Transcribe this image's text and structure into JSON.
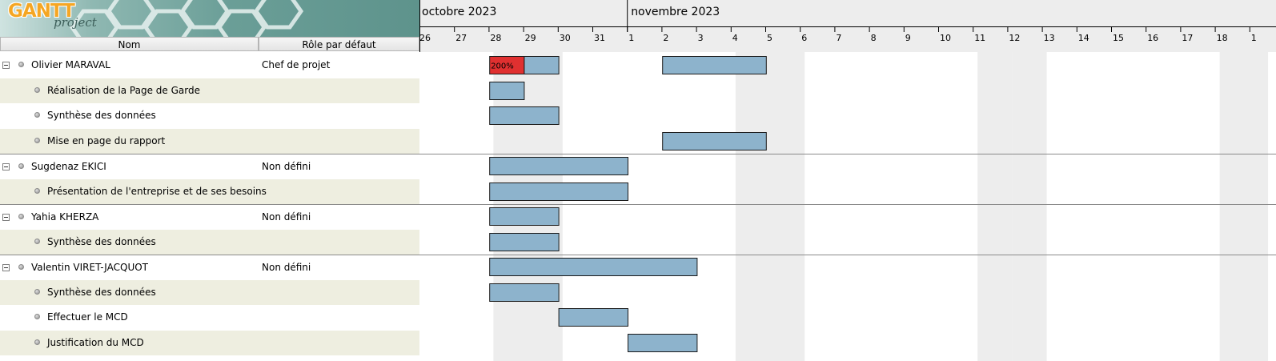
{
  "logo": {
    "gantt": "GANTT",
    "project": "project"
  },
  "table_headers": {
    "name": "Nom",
    "role": "Rôle par défaut"
  },
  "rows": [
    {
      "type": "resource",
      "name": "Olivier MARAVAL",
      "role": "Chef de projet"
    },
    {
      "type": "task",
      "name": "Réalisation de la Page de Garde"
    },
    {
      "type": "task",
      "name": "Synthèse des données"
    },
    {
      "type": "task",
      "name": "Mise en page du rapport"
    },
    {
      "type": "resource",
      "name": "Sugdenaz EKICI",
      "role": "Non défini"
    },
    {
      "type": "task",
      "name": "Présentation de l'entreprise et de ses besoins"
    },
    {
      "type": "resource",
      "name": "Yahia KHERZA",
      "role": "Non défini"
    },
    {
      "type": "task",
      "name": "Synthèse des données"
    },
    {
      "type": "resource",
      "name": "Valentin VIRET-JACQUOT",
      "role": "Non défini"
    },
    {
      "type": "task",
      "name": "Synthèse des données"
    },
    {
      "type": "task",
      "name": "Effectuer le MCD"
    },
    {
      "type": "task",
      "name": "Justification du MCD"
    }
  ],
  "timeline": {
    "months": [
      "octobre 2023",
      "novembre 2023"
    ],
    "day_labels": [
      "26",
      "27",
      "28",
      "29",
      "30",
      "31",
      "1",
      "2",
      "3",
      "4",
      "5",
      "6",
      "7",
      "8",
      "9",
      "10",
      "11",
      "12",
      "13",
      "14",
      "15",
      "16",
      "17",
      "18",
      "1"
    ],
    "weekend_days": [
      "28",
      "29",
      "4",
      "5",
      "11",
      "12",
      "18",
      "19"
    ]
  },
  "load_label": "200%",
  "colors": {
    "bar": "#8db3cc",
    "overload": "#e03030",
    "weekend": "#ededed",
    "alt_row": "#eeeee0"
  },
  "bars": [
    {
      "row": 0,
      "start": "27 oct.",
      "end": "28 oct.",
      "overload": true
    },
    {
      "row": 0,
      "start": "28 oct.",
      "end": "29 oct."
    },
    {
      "row": 0,
      "start": "1 nov.",
      "end": "4 nov."
    },
    {
      "row": 1,
      "start": "27 oct.",
      "end": "28 oct."
    },
    {
      "row": 2,
      "start": "27 oct.",
      "end": "29 oct."
    },
    {
      "row": 3,
      "start": "1 nov.",
      "end": "4 nov."
    },
    {
      "row": 4,
      "start": "27 oct.",
      "end": "31 oct."
    },
    {
      "row": 5,
      "start": "27 oct.",
      "end": "31 oct."
    },
    {
      "row": 6,
      "start": "27 oct.",
      "end": "29 oct."
    },
    {
      "row": 7,
      "start": "27 oct.",
      "end": "29 oct."
    },
    {
      "row": 8,
      "start": "27 oct.",
      "end": "2 nov."
    },
    {
      "row": 9,
      "start": "27 oct.",
      "end": "29 oct."
    },
    {
      "row": 10,
      "start": "29 oct.",
      "end": "31 oct."
    },
    {
      "row": 11,
      "start": "31 oct.",
      "end": "2 nov."
    }
  ]
}
